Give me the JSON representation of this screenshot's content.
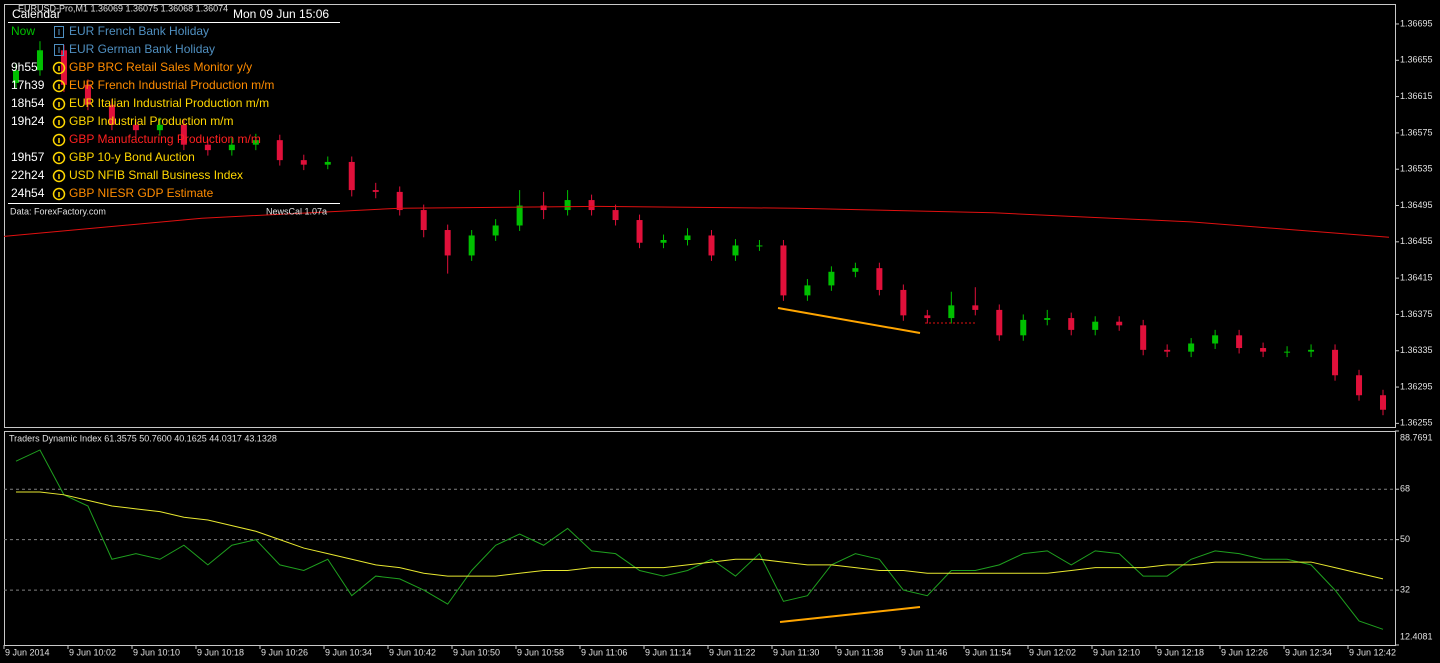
{
  "header": {
    "symbol_line": "EURUSD-Pro,M1  1.36069 1.36075 1.36068 1.36074",
    "calendar_title": "Calendar",
    "clock": "Mon 09 Jun 15:06",
    "source": "Data: ForexFactory.com",
    "version": "NewsCal 1.07a"
  },
  "calendar": {
    "rows": [
      {
        "time": "Now",
        "event": "EUR French Bank Holiday",
        "color": "#4f8fc0",
        "time_color": "#00c000",
        "icon": "holiday"
      },
      {
        "time": null,
        "event": "EUR German Bank Holiday",
        "color": "#4f8fc0",
        "time_color": "#ffffff",
        "icon": "holiday"
      },
      {
        "time": "9h55",
        "event": "GBP BRC Retail Sales Monitor y/y",
        "color": "#ff8c00",
        "time_color": "#ffffff",
        "icon": "info"
      },
      {
        "time": "17h39",
        "event": "EUR French Industrial Production m/m",
        "color": "#ff8c00",
        "time_color": "#ffffff",
        "icon": "info"
      },
      {
        "time": "18h54",
        "event": "EUR Italian Industrial Production m/m",
        "color": "#ffd700",
        "time_color": "#ffffff",
        "icon": "info"
      },
      {
        "time": "19h24",
        "event": "GBP Industrial Production m/m",
        "color": "#ffd700",
        "time_color": "#ffffff",
        "icon": "info"
      },
      {
        "time": null,
        "event": "GBP Manufacturing Production m/m",
        "color": "#ff2020",
        "time_color": "#ffffff",
        "icon": "info"
      },
      {
        "time": "19h57",
        "event": "GBP 10-y Bond Auction",
        "color": "#ffd700",
        "time_color": "#ffffff",
        "icon": "info"
      },
      {
        "time": "22h24",
        "event": "USD NFIB Small Business Index",
        "color": "#ffd700",
        "time_color": "#ffffff",
        "icon": "info"
      },
      {
        "time": "24h54",
        "event": "GBP NIESR GDP Estimate",
        "color": "#ff8c00",
        "time_color": "#ffffff",
        "icon": "info"
      }
    ]
  },
  "price_chart": {
    "type": "candlestick",
    "up_color": "#00c000",
    "down_color": "#e0103a",
    "ylim": [
      1.36251,
      1.36717
    ],
    "yticks": [
      1.36695,
      1.36655,
      1.36615,
      1.36575,
      1.36535,
      1.36495,
      1.36455,
      1.36415,
      1.36375,
      1.36335,
      1.36295,
      1.36255
    ],
    "candles": [
      [
        1.3663,
        1.36652,
        1.36624,
        1.36644
      ],
      [
        1.36644,
        1.36676,
        1.36638,
        1.36666
      ],
      [
        1.36666,
        1.36672,
        1.3662,
        1.36628
      ],
      [
        1.36628,
        1.36634,
        1.366,
        1.36606
      ],
      [
        1.36606,
        1.36612,
        1.36578,
        1.36584
      ],
      [
        1.36584,
        1.3659,
        1.3657,
        1.36578
      ],
      [
        1.36578,
        1.36592,
        1.36572,
        1.36584
      ],
      [
        1.36584,
        1.3659,
        1.36556,
        1.36562
      ],
      [
        1.36562,
        1.36568,
        1.3655,
        1.36556
      ],
      [
        1.36556,
        1.3657,
        1.3655,
        1.36562
      ],
      [
        1.36562,
        1.36574,
        1.36556,
        1.36567
      ],
      [
        1.36567,
        1.36573,
        1.36539,
        1.36545
      ],
      [
        1.36545,
        1.36551,
        1.36534,
        1.3654
      ],
      [
        1.3654,
        1.36549,
        1.36535,
        1.36543
      ],
      [
        1.36543,
        1.36549,
        1.36505,
        1.36512
      ],
      [
        1.36512,
        1.3652,
        1.36503,
        1.3651
      ],
      [
        1.3651,
        1.36516,
        1.36484,
        1.3649
      ],
      [
        1.3649,
        1.36496,
        1.3646,
        1.36468
      ],
      [
        1.36468,
        1.36474,
        1.3642,
        1.3644
      ],
      [
        1.3644,
        1.36468,
        1.36434,
        1.36462
      ],
      [
        1.36462,
        1.3648,
        1.36456,
        1.36473
      ],
      [
        1.36473,
        1.36512,
        1.36467,
        1.36495
      ],
      [
        1.36495,
        1.3651,
        1.3648,
        1.3649
      ],
      [
        1.3649,
        1.36512,
        1.36484,
        1.36501
      ],
      [
        1.36501,
        1.36507,
        1.36484,
        1.3649
      ],
      [
        1.3649,
        1.36496,
        1.36473,
        1.36479
      ],
      [
        1.36479,
        1.36485,
        1.36448,
        1.36454
      ],
      [
        1.36454,
        1.36463,
        1.36448,
        1.36457
      ],
      [
        1.36457,
        1.3647,
        1.36451,
        1.36462
      ],
      [
        1.36462,
        1.36468,
        1.36434,
        1.3644
      ],
      [
        1.3644,
        1.36458,
        1.36434,
        1.36451
      ],
      [
        1.36451,
        1.36457,
        1.36445,
        1.36451
      ],
      [
        1.36451,
        1.36457,
        1.3639,
        1.36396
      ],
      [
        1.36396,
        1.36414,
        1.3639,
        1.36407
      ],
      [
        1.36407,
        1.36428,
        1.36401,
        1.36422
      ],
      [
        1.36422,
        1.36432,
        1.36416,
        1.36426
      ],
      [
        1.36426,
        1.36432,
        1.36396,
        1.36402
      ],
      [
        1.36402,
        1.36408,
        1.36368,
        1.36374
      ],
      [
        1.36374,
        1.3638,
        1.36365,
        1.36371
      ],
      [
        1.36371,
        1.364,
        1.36365,
        1.36385
      ],
      [
        1.36385,
        1.36405,
        1.36374,
        1.3638
      ],
      [
        1.3638,
        1.36386,
        1.36346,
        1.36352
      ],
      [
        1.36352,
        1.36375,
        1.36346,
        1.36369
      ],
      [
        1.36369,
        1.3638,
        1.36363,
        1.36371
      ],
      [
        1.36371,
        1.36377,
        1.36352,
        1.36358
      ],
      [
        1.36358,
        1.36373,
        1.36352,
        1.36367
      ],
      [
        1.36367,
        1.36373,
        1.36357,
        1.36363
      ],
      [
        1.36363,
        1.36369,
        1.3633,
        1.36336
      ],
      [
        1.36336,
        1.36342,
        1.36328,
        1.36334
      ],
      [
        1.36334,
        1.36349,
        1.36328,
        1.36343
      ],
      [
        1.36343,
        1.36358,
        1.36337,
        1.36352
      ],
      [
        1.36352,
        1.36358,
        1.36332,
        1.36338
      ],
      [
        1.36338,
        1.36344,
        1.36328,
        1.36334
      ],
      [
        1.36334,
        1.3634,
        1.36328,
        1.36334
      ],
      [
        1.36334,
        1.36342,
        1.36328,
        1.36336
      ],
      [
        1.36336,
        1.36342,
        1.36302,
        1.36308
      ],
      [
        1.36308,
        1.36314,
        1.3628,
        1.36286
      ],
      [
        1.36286,
        1.36292,
        1.36264,
        1.3627
      ]
    ],
    "ma": {
      "color": "#e01010",
      "values": [
        1.36461,
        1.36481,
        1.36492,
        1.36494,
        1.36492,
        1.36487,
        1.36477,
        1.3646
      ]
    }
  },
  "indicator": {
    "title": "Traders Dynamic Index 61.3575 50.7600 40.1625 44.0317 43.1328",
    "ylim": [
      12.4081,
      88.7691
    ],
    "yticks": [
      88.7691,
      68,
      50,
      32,
      12.4081
    ],
    "grid": [
      68,
      50,
      32
    ],
    "series": [
      {
        "color": "#1fa01f",
        "values": [
          78,
          82,
          66,
          62,
          43,
          45,
          43,
          48,
          41,
          48,
          50,
          41,
          39,
          43,
          30,
          37,
          36,
          32,
          27,
          39,
          48,
          52,
          48,
          54,
          46,
          45,
          39,
          37,
          39,
          43,
          37,
          45,
          28,
          30,
          41,
          45,
          43,
          32,
          30,
          39,
          39,
          41,
          45,
          46,
          41,
          46,
          45,
          37,
          37,
          43,
          46,
          45,
          43,
          43,
          41,
          32,
          21,
          18
        ]
      },
      {
        "color": "#e8e830",
        "values": [
          67,
          67,
          66,
          64,
          62,
          61,
          60,
          58,
          57,
          55,
          53,
          50,
          47,
          45,
          43,
          41,
          40,
          38,
          37,
          37,
          37,
          38,
          39,
          39,
          40,
          40,
          40,
          40,
          41,
          42,
          43,
          43,
          42,
          41,
          41,
          40,
          39,
          39,
          38,
          38,
          38,
          38,
          38,
          38,
          39,
          40,
          40,
          40,
          41,
          41,
          42,
          42,
          42,
          42,
          42,
          40,
          38,
          36
        ]
      }
    ]
  },
  "time_labels": [
    "9 Jun 2014",
    "9 Jun 10:02",
    "9 Jun 10:10",
    "9 Jun 10:18",
    "9 Jun 10:26",
    "9 Jun 10:34",
    "9 Jun 10:42",
    "9 Jun 10:50",
    "9 Jun 10:58",
    "9 Jun 11:06",
    "9 Jun 11:14",
    "9 Jun 11:22",
    "9 Jun 11:30",
    "9 Jun 11:38",
    "9 Jun 11:46",
    "9 Jun 11:54",
    "9 Jun 12:02",
    "9 Jun 12:10",
    "9 Jun 12:18",
    "9 Jun 12:26",
    "9 Jun 12:34",
    "9 Jun 12:42"
  ]
}
